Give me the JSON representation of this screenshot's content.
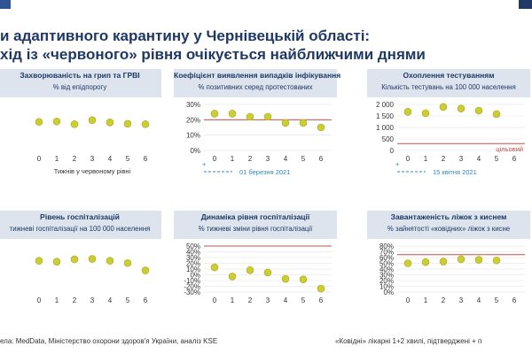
{
  "colors": {
    "dot": "#cccc33",
    "dot_stroke": "#a8a820",
    "threshold": "#c0504d",
    "header_bg": "#dde4ee",
    "title": "#1f3864",
    "note_blue": "#2e86c1",
    "grid": "#e0e0e0"
  },
  "page": {
    "title_line1": "и адаптивного карантину у Чернівецькій області:",
    "title_line2": "хід із «червоного» рівня очікується найближчими днями"
  },
  "footer": {
    "source": "ела: MedData, Міністерство охорони здоров'я України, аналіз KSE",
    "note": "«Ковідні» лікарні 1+2 хвилі, підтверджені + п"
  },
  "chart_data": [
    {
      "type": "scatter",
      "title": "Захворюваність на грип та ГРВІ",
      "subtitle": "% від епідпорогу",
      "x": [
        0,
        1,
        2,
        3,
        4,
        5,
        6
      ],
      "y": [
        62,
        63,
        57,
        66,
        61,
        58,
        57
      ],
      "xlabel": "Тижнів у червоному рівні",
      "xlim": [
        -0.6,
        6.6
      ],
      "ylim": [
        0,
        100
      ],
      "yticks": [],
      "yticklabels": [],
      "y_axis_visible": false,
      "threshold": null,
      "note": null,
      "note_type": null,
      "grid": false
    },
    {
      "type": "scatter",
      "title": "Коефіцієнт виявлення випадків інфікування",
      "subtitle": "% позитивних серед протестованих",
      "x": [
        0,
        1,
        2,
        3,
        4,
        5,
        6
      ],
      "y": [
        24,
        24,
        22,
        22,
        18,
        18,
        15
      ],
      "xlabel": "",
      "xlim": [
        -0.6,
        6.6
      ],
      "ylim": [
        0,
        30
      ],
      "yticks": [
        0,
        10,
        20,
        30
      ],
      "yticklabels": [
        "0%",
        "10%",
        "20%",
        "30%"
      ],
      "y_axis_visible": true,
      "threshold": 20,
      "note": "01 березня 2021",
      "note_type": "date",
      "grid": true
    },
    {
      "type": "scatter",
      "title": "Охоплення тестуванням",
      "subtitle": "Кількість тестувань на 100 000 населення",
      "x": [
        0,
        1,
        2,
        3,
        4,
        5
      ],
      "y": [
        1680,
        1620,
        1890,
        1820,
        1730,
        1580
      ],
      "xlabel": "",
      "xlim": [
        -0.6,
        6.6
      ],
      "ylim": [
        0,
        2000
      ],
      "yticks": [
        0,
        500,
        1000,
        1500,
        2000
      ],
      "yticklabels": [
        "0",
        "500",
        "1 000",
        "1 500",
        "2 000"
      ],
      "y_axis_visible": true,
      "threshold": 300,
      "note": "15 квітня 2021",
      "note_type": "date",
      "threshold_label": "цільовий",
      "grid": true
    },
    {
      "type": "scatter",
      "title": "Рівень госпіталізацій",
      "subtitle": "тижневі госпіталізації на 100 000 населення",
      "x": [
        0,
        1,
        2,
        3,
        4,
        5,
        6
      ],
      "y": [
        68,
        66,
        71,
        72,
        68,
        63,
        47
      ],
      "xlabel": "",
      "xlim": [
        -0.6,
        6.6
      ],
      "ylim": [
        0,
        100
      ],
      "yticks": [],
      "yticklabels": [],
      "y_axis_visible": false,
      "threshold": null,
      "note": null,
      "note_type": null,
      "grid": false
    },
    {
      "type": "scatter",
      "title": "Динаміка рівня госпіталізації",
      "subtitle": "% тижневі зміни рівня госпіталізації",
      "x": [
        0,
        1,
        2,
        3,
        4,
        5,
        6
      ],
      "y": [
        13,
        -3,
        8,
        4,
        -7,
        -8,
        -24
      ],
      "xlabel": "",
      "xlim": [
        -0.6,
        6.6
      ],
      "ylim": [
        -30,
        50
      ],
      "yticks": [
        -30,
        -20,
        -10,
        0,
        10,
        20,
        30,
        40,
        50
      ],
      "yticklabels": [
        "-30%",
        "-20%",
        "-10%",
        "0%",
        "10%",
        "20%",
        "30%",
        "40%",
        "50%"
      ],
      "y_axis_visible": true,
      "threshold": 50,
      "note": null,
      "note_type": null,
      "grid": true
    },
    {
      "type": "scatter",
      "title": "Завантаженість ліжок з киснем",
      "subtitle": "% зайнятості «ковідних» ліжок з кисне",
      "x": [
        0,
        1,
        2,
        3,
        4,
        5
      ],
      "y": [
        50,
        52,
        53,
        57,
        56,
        55
      ],
      "xlabel": "",
      "xlim": [
        -0.6,
        6.6
      ],
      "ylim": [
        0,
        80
      ],
      "yticks": [
        0,
        10,
        20,
        30,
        40,
        50,
        60,
        70,
        80
      ],
      "yticklabels": [
        "0%",
        "10%",
        "20%",
        "30%",
        "40%",
        "50%",
        "60%",
        "70%",
        "80%"
      ],
      "y_axis_visible": true,
      "threshold": 65,
      "note": null,
      "note_type": null,
      "grid": true
    }
  ]
}
